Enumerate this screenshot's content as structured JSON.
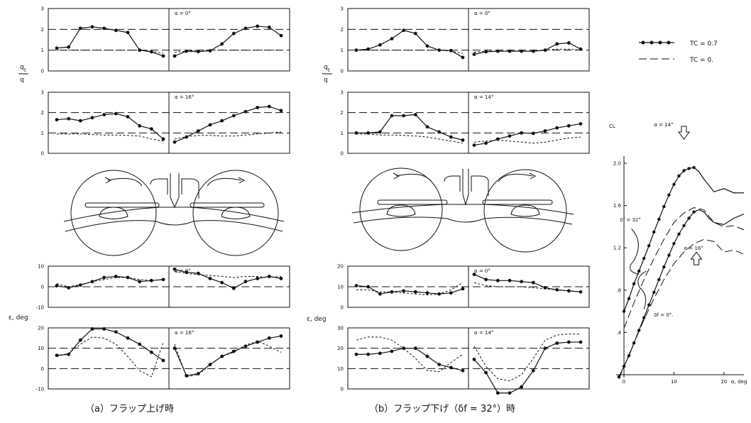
{
  "captions": {
    "a": "（a）フラップ上げ時",
    "b": "（b）フラップ下げ（δf = 32°）時"
  },
  "left_labels": {
    "q_num": "q",
    "q_sub": "t",
    "q_den": "q",
    "epsilon": "ε, deg"
  },
  "legend": [
    {
      "label": "TC = 0.7",
      "style": "solid-dots"
    },
    {
      "label": "TC = 0.",
      "style": "dashed"
    }
  ],
  "chart_data": [
    {
      "id": "a-q-alpha0",
      "type": "line",
      "title": "α = 0°",
      "ylabel": "qt/q",
      "ylim": [
        0,
        3
      ],
      "yticks": [
        "3",
        "2",
        "1",
        "0"
      ],
      "series": [
        {
          "name": "TC = 0.7",
          "left": [
            1.1,
            1.15,
            2.05,
            2.12,
            2.05,
            1.95,
            1.85,
            1.0,
            0.92,
            0.72
          ],
          "right": [
            0.72,
            0.95,
            0.93,
            0.97,
            1.3,
            1.8,
            2.05,
            2.15,
            2.1,
            1.7
          ]
        },
        {
          "name": "TC = 0.",
          "left": [
            1.0,
            1.0,
            1.0,
            1.0,
            1.0,
            1.0,
            1.0,
            1.0,
            0.95,
            0.85
          ],
          "right": [
            0.9,
            0.95,
            1.0,
            1.0,
            1.0,
            1.0,
            1.0,
            1.0,
            1.0,
            1.0
          ]
        }
      ]
    },
    {
      "id": "a-q-alpha16",
      "type": "line",
      "title": "α = 16°",
      "ylabel": "qt/q",
      "ylim": [
        0,
        3
      ],
      "yticks": [
        "3",
        "2",
        "1",
        "0"
      ],
      "series": [
        {
          "name": "TC = 0.7",
          "left": [
            1.65,
            1.7,
            1.6,
            1.75,
            1.9,
            1.95,
            1.8,
            1.35,
            1.2,
            0.7
          ],
          "right": [
            0.55,
            0.8,
            1.1,
            1.4,
            1.6,
            1.85,
            2.05,
            2.25,
            2.3,
            2.1
          ]
        },
        {
          "name": "TC = 0.",
          "left": [
            0.95,
            0.95,
            0.95,
            0.92,
            0.9,
            0.9,
            0.88,
            0.85,
            0.7,
            0.6
          ],
          "right": [
            0.7,
            0.82,
            0.88,
            0.88,
            0.85,
            0.85,
            0.9,
            0.95,
            1.0,
            1.05
          ]
        }
      ]
    },
    {
      "id": "a-eps-alpha0",
      "type": "line",
      "title": "α = 0°",
      "ylabel": "ε, deg",
      "ylim": [
        -10,
        10
      ],
      "yticks": [
        "-10",
        "0",
        "10"
      ],
      "series": [
        {
          "name": "TC = 0.7",
          "left": [
            0.5,
            -0.5,
            0.8,
            2.5,
            4.5,
            5.0,
            4.5,
            2.5,
            3.0,
            3.5
          ],
          "right": [
            8.5,
            7.0,
            6.5,
            4.0,
            2.0,
            -0.8,
            2.5,
            4.0,
            5.0,
            4.0
          ]
        },
        {
          "name": "TC = 0.",
          "left": [
            1.5,
            0.0,
            1.0,
            2.5,
            3.5,
            4.5,
            4.5,
            3.5,
            3.0,
            3.5
          ],
          "right": [
            7.5,
            6.5,
            5.8,
            5.5,
            5.0,
            4.5,
            5.0,
            5.0,
            4.5,
            5.0
          ]
        }
      ]
    },
    {
      "id": "a-eps-alpha16",
      "type": "line",
      "title": "α = 16°",
      "ylabel": "ε, deg",
      "ylim": [
        -10,
        20
      ],
      "yticks": [
        "-10",
        "0",
        "10",
        "20"
      ],
      "series": [
        {
          "name": "TC = 0.7",
          "left": [
            6.5,
            7.0,
            14.0,
            19.5,
            19.5,
            18.0,
            15.0,
            12.0,
            8.0,
            4.0
          ],
          "right": [
            10.0,
            -3.5,
            -2.5,
            2.0,
            6.0,
            8.5,
            11.0,
            13.0,
            15.0,
            16.0
          ]
        },
        {
          "name": "TC = 0.",
          "left": [
            6.0,
            7.5,
            12.0,
            15.5,
            15.0,
            12.0,
            6.0,
            -1.0,
            -4.0,
            13.0
          ],
          "right": [
            12.0,
            -4.0,
            -3.0,
            2.0,
            6.0,
            8.0,
            11.5,
            13.5,
            11.0,
            8.0
          ]
        }
      ]
    },
    {
      "id": "b-q-alpha0",
      "type": "line",
      "title": "α = 0°",
      "ylabel": "qt/q",
      "ylim": [
        0,
        3
      ],
      "yticks": [
        "3",
        "2",
        "1",
        "0"
      ],
      "series": [
        {
          "name": "TC = 0.7",
          "left": [
            1.0,
            1.05,
            1.25,
            1.55,
            1.95,
            1.8,
            1.2,
            1.0,
            0.98,
            0.65
          ],
          "right": [
            0.8,
            0.92,
            0.95,
            0.95,
            0.95,
            0.95,
            1.0,
            1.3,
            1.35,
            1.05
          ]
        },
        {
          "name": "TC = 0.",
          "left": [
            1.0,
            1.0,
            1.0,
            1.0,
            1.0,
            1.0,
            1.0,
            1.0,
            0.95,
            0.85
          ],
          "right": [
            0.9,
            0.95,
            0.95,
            0.95,
            0.95,
            0.95,
            1.0,
            1.05,
            1.05,
            1.0
          ]
        }
      ]
    },
    {
      "id": "b-q-alpha14",
      "type": "line",
      "title": "α = 14°",
      "ylabel": "qt/q",
      "ylim": [
        0,
        3
      ],
      "yticks": [
        "3",
        "2",
        "1",
        "0"
      ],
      "series": [
        {
          "name": "TC = 0.7",
          "left": [
            1.0,
            1.0,
            1.05,
            1.85,
            1.85,
            1.9,
            1.3,
            1.05,
            0.8,
            0.65
          ],
          "right": [
            0.4,
            0.5,
            0.7,
            0.85,
            1.0,
            0.98,
            1.1,
            1.25,
            1.35,
            1.45
          ]
        },
        {
          "name": "TC = 0.",
          "left": [
            0.95,
            0.95,
            0.9,
            0.9,
            0.88,
            0.85,
            0.8,
            0.7,
            0.6,
            0.5
          ],
          "right": [
            0.55,
            0.6,
            0.65,
            0.6,
            0.55,
            0.5,
            0.55,
            0.65,
            0.75,
            0.8
          ]
        }
      ]
    },
    {
      "id": "b-eps-alpha0",
      "type": "line",
      "title": "α = 0°",
      "ylabel": "ε, deg",
      "ylim": [
        0,
        20
      ],
      "yticks": [
        "0",
        "10",
        "20"
      ],
      "series": [
        {
          "name": "TC = 0.7",
          "left": [
            10.5,
            10.0,
            6.5,
            7.5,
            8.0,
            7.5,
            7.0,
            6.5,
            7.0,
            9.0
          ],
          "right": [
            16.0,
            13.5,
            13.0,
            13.0,
            12.5,
            12.0,
            9.5,
            8.5,
            8.0,
            7.5
          ]
        },
        {
          "name": "TC = 0.",
          "left": [
            8.5,
            8.5,
            7.5,
            7.5,
            7.0,
            6.5,
            6.0,
            6.5,
            8.5,
            12.0
          ],
          "right": [
            12.0,
            10.5,
            10.0,
            10.0,
            10.0,
            9.5,
            9.0,
            8.5,
            8.0,
            7.5
          ]
        }
      ]
    },
    {
      "id": "b-eps-alpha14",
      "type": "line",
      "title": "α = 14°",
      "ylabel": "ε, deg",
      "ylim": [
        0,
        30
      ],
      "yticks": [
        "0",
        "10",
        "20",
        "30"
      ],
      "series": [
        {
          "name": "TC = 0.7",
          "left": [
            17.0,
            17.0,
            17.5,
            18.5,
            20.0,
            20.0,
            16.0,
            12.0,
            10.5,
            9.0
          ],
          "right": [
            14.5,
            8.0,
            -2.0,
            -2.0,
            1.0,
            9.0,
            20.0,
            22.5,
            23.0,
            23.0
          ]
        },
        {
          "name": "TC = 0.",
          "left": [
            24.0,
            25.5,
            25.5,
            24.0,
            20.0,
            15.0,
            9.0,
            8.5,
            13.0,
            17.0
          ],
          "right": [
            21.0,
            11.0,
            5.0,
            4.0,
            7.0,
            15.0,
            24.0,
            26.5,
            27.0,
            27.0
          ]
        }
      ]
    },
    {
      "id": "cl-alpha",
      "type": "line",
      "ylabel": "CL",
      "xlabel": "α, deg",
      "ylim": [
        0,
        2.0
      ],
      "xlim": [
        -1,
        24
      ],
      "yticks": [
        "2.0",
        "1.6",
        "1.2",
        ".8",
        ".4"
      ],
      "xticks": [
        "0",
        "10",
        "20"
      ],
      "annotations": [
        "α = 14°",
        "α = 16°",
        "δf = 32°",
        "δf = 0°."
      ],
      "series": [
        {
          "name": "δf = 32°, TC = 0.7",
          "x": [
            0,
            1,
            2,
            3,
            4,
            5,
            6,
            7,
            8,
            9,
            10,
            11,
            12,
            13,
            14,
            15,
            16,
            18,
            20,
            22,
            24
          ],
          "y": [
            0.6,
            0.72,
            0.86,
            0.98,
            1.1,
            1.22,
            1.35,
            1.47,
            1.59,
            1.7,
            1.8,
            1.88,
            1.93,
            1.95,
            1.96,
            1.92,
            1.85,
            1.73,
            1.76,
            1.72,
            1.72
          ]
        },
        {
          "name": "δf = 32°, TC = 0.",
          "x": [
            0,
            2,
            4,
            6,
            8,
            10,
            12,
            14,
            16,
            18,
            20,
            22,
            24
          ],
          "y": [
            0.44,
            0.68,
            0.9,
            1.1,
            1.28,
            1.44,
            1.53,
            1.58,
            1.56,
            1.44,
            1.4,
            1.41,
            1.37
          ]
        },
        {
          "name": "δf = 0°, TC = 0.7",
          "x": [
            -1,
            0,
            1,
            2,
            3,
            4,
            5,
            6,
            7,
            8,
            9,
            10,
            11,
            12,
            13,
            14,
            15,
            16,
            17,
            18,
            20,
            22,
            24
          ],
          "y": [
            -0.02,
            0.08,
            0.18,
            0.3,
            0.42,
            0.54,
            0.66,
            0.78,
            0.9,
            1.02,
            1.13,
            1.24,
            1.33,
            1.41,
            1.48,
            1.54,
            1.56,
            1.54,
            1.48,
            1.44,
            1.42,
            1.48,
            1.52
          ]
        },
        {
          "name": "δf = 0°, TC = 0.",
          "x": [
            -1,
            0,
            2,
            4,
            6,
            8,
            10,
            12,
            14,
            16,
            18,
            20,
            22,
            24
          ],
          "y": [
            -0.04,
            0.08,
            0.3,
            0.52,
            0.72,
            0.9,
            1.05,
            1.16,
            1.24,
            1.28,
            1.26,
            1.16,
            1.18,
            1.14
          ]
        }
      ]
    }
  ]
}
